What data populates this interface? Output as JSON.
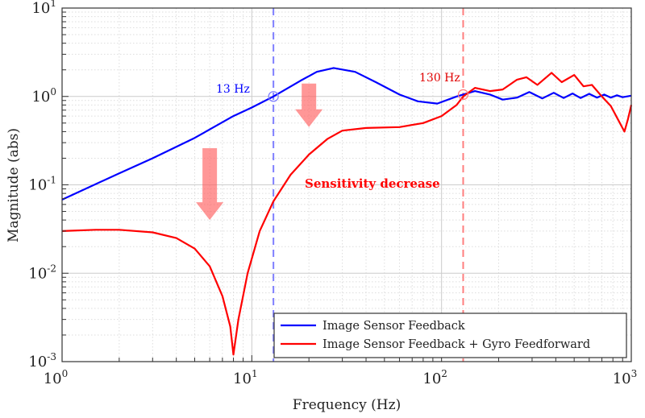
{
  "chart_data": {
    "type": "line",
    "xlabel": "Frequency (Hz)",
    "ylabel": "Magnitude (abs)",
    "xscale": "log",
    "yscale": "log",
    "xlim": [
      1,
      1000
    ],
    "ylim": [
      0.001,
      10
    ],
    "x_ticks": [
      {
        "v": 1,
        "base": "10",
        "exp": "0"
      },
      {
        "v": 10,
        "base": "10",
        "exp": "1"
      },
      {
        "v": 100,
        "base": "10",
        "exp": "2"
      },
      {
        "v": 1000,
        "base": "10",
        "exp": "3"
      }
    ],
    "y_ticks": [
      {
        "v": 0.001,
        "base": "10",
        "exp": "-3"
      },
      {
        "v": 0.01,
        "base": "10",
        "exp": "-2"
      },
      {
        "v": 0.1,
        "base": "10",
        "exp": "-1"
      },
      {
        "v": 1,
        "base": "10",
        "exp": "0"
      },
      {
        "v": 10,
        "base": "10",
        "exp": "1"
      }
    ],
    "grid": true,
    "legend_position": "bottom-right",
    "series": [
      {
        "name": "Image Sensor Feedback",
        "color": "#0000ff",
        "x": [
          1,
          2,
          3,
          5,
          8,
          10,
          13,
          18,
          22,
          27,
          35,
          45,
          60,
          75,
          95,
          120,
          150,
          180,
          210,
          250,
          290,
          340,
          390,
          440,
          490,
          540,
          600,
          660,
          720,
          780,
          840,
          900,
          1000
        ],
        "y": [
          0.068,
          0.135,
          0.2,
          0.34,
          0.6,
          0.75,
          1.0,
          1.5,
          1.9,
          2.1,
          1.9,
          1.45,
          1.05,
          0.88,
          0.83,
          1.0,
          1.15,
          1.05,
          0.92,
          0.97,
          1.12,
          0.95,
          1.1,
          0.96,
          1.08,
          0.96,
          1.07,
          0.97,
          1.05,
          0.97,
          1.03,
          0.98,
          1.02
        ]
      },
      {
        "name": "Image Sensor Feedback + Gyro Feedforward",
        "color": "#ff0000",
        "x": [
          1,
          1.5,
          2,
          3,
          4,
          5,
          6,
          7,
          7.7,
          8,
          8.5,
          9.5,
          11,
          13,
          16,
          20,
          25,
          30,
          40,
          60,
          80,
          100,
          120,
          130,
          150,
          180,
          210,
          250,
          280,
          320,
          380,
          430,
          500,
          560,
          620,
          700,
          780,
          850,
          920,
          960,
          1000
        ],
        "y": [
          0.03,
          0.031,
          0.031,
          0.029,
          0.025,
          0.019,
          0.012,
          0.0055,
          0.0025,
          0.0012,
          0.003,
          0.01,
          0.03,
          0.065,
          0.13,
          0.22,
          0.33,
          0.41,
          0.44,
          0.45,
          0.5,
          0.6,
          0.8,
          1.0,
          1.25,
          1.15,
          1.2,
          1.55,
          1.65,
          1.35,
          1.85,
          1.45,
          1.75,
          1.3,
          1.35,
          1.0,
          0.78,
          0.55,
          0.4,
          0.55,
          0.8
        ]
      }
    ],
    "vlines": [
      {
        "x": 13,
        "color": "#7f7fff",
        "label": "13 Hz",
        "label_color": "#0000ff",
        "marker_y": 1.0
      },
      {
        "x": 130,
        "color": "#ff7f7f",
        "label": "130 Hz",
        "label_color": "#e00000",
        "marker_y": 1.05
      }
    ],
    "annotations": [
      {
        "text": "Sensitivity decrease",
        "color": "#ff0000",
        "x": 19,
        "y": 0.12
      }
    ],
    "arrows": [
      {
        "x": 6,
        "y_from": 0.26,
        "y_to": 0.04
      },
      {
        "x": 20,
        "y_from": 1.4,
        "y_to": 0.45
      }
    ]
  }
}
